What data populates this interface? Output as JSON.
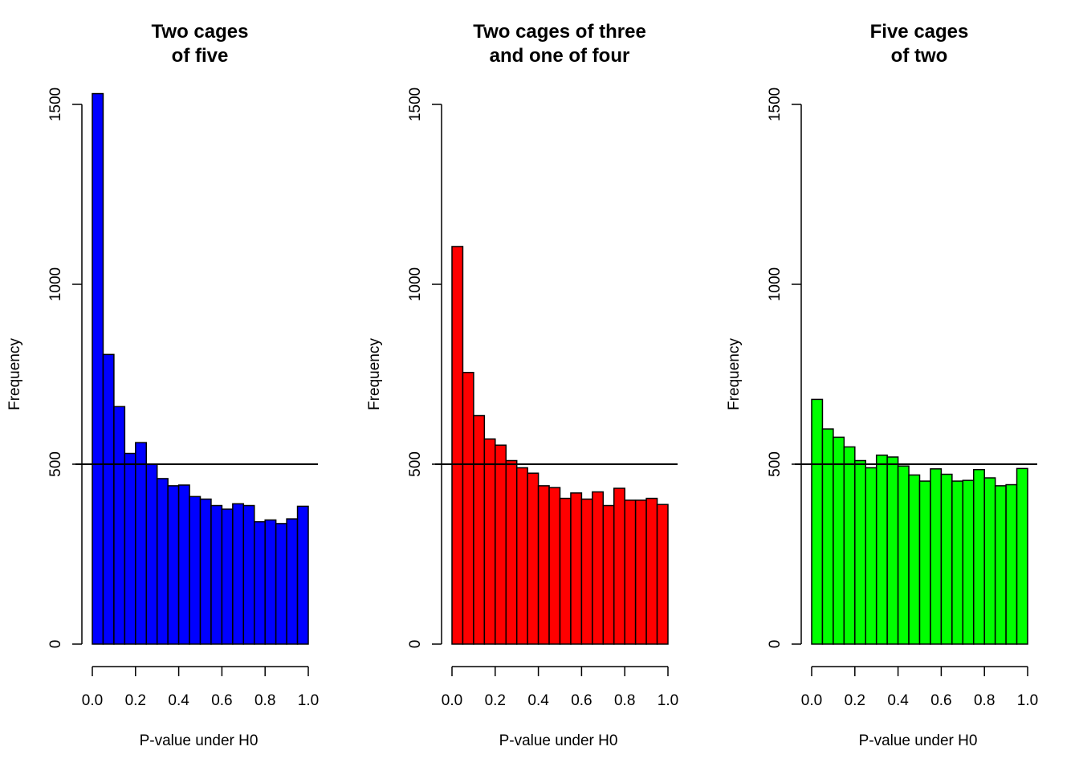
{
  "chart_data": [
    {
      "type": "bar",
      "title_lines": [
        "Two cages",
        "of five"
      ],
      "xlabel": "P-value under H0",
      "ylabel": "Frequency",
      "bin_edges": [
        0.0,
        0.05,
        0.1,
        0.15,
        0.2,
        0.25,
        0.3,
        0.35,
        0.4,
        0.45,
        0.5,
        0.55,
        0.6,
        0.65,
        0.7,
        0.75,
        0.8,
        0.85,
        0.9,
        0.95,
        1.0
      ],
      "values": [
        1530,
        805,
        660,
        530,
        560,
        500,
        460,
        440,
        442,
        410,
        403,
        385,
        375,
        390,
        385,
        340,
        345,
        335,
        348,
        383
      ],
      "xlim": [
        0,
        1
      ],
      "ylim": [
        0,
        1500
      ],
      "xticks": [
        "0.0",
        "0.2",
        "0.4",
        "0.6",
        "0.8",
        "1.0"
      ],
      "yticks": [
        "0",
        "500",
        "1000",
        "1500"
      ],
      "reference_line_y": 500,
      "bar_color": "#0000ff"
    },
    {
      "type": "bar",
      "title_lines": [
        "Two cages of three",
        "and one of four"
      ],
      "xlabel": "P-value under H0",
      "ylabel": "Frequency",
      "bin_edges": [
        0.0,
        0.05,
        0.1,
        0.15,
        0.2,
        0.25,
        0.3,
        0.35,
        0.4,
        0.45,
        0.5,
        0.55,
        0.6,
        0.65,
        0.7,
        0.75,
        0.8,
        0.85,
        0.9,
        0.95,
        1.0
      ],
      "values": [
        1105,
        755,
        635,
        570,
        553,
        510,
        490,
        475,
        440,
        435,
        405,
        420,
        403,
        423,
        385,
        433,
        400,
        400,
        405,
        388
      ],
      "xlim": [
        0,
        1
      ],
      "ylim": [
        0,
        1500
      ],
      "xticks": [
        "0.0",
        "0.2",
        "0.4",
        "0.6",
        "0.8",
        "1.0"
      ],
      "yticks": [
        "0",
        "500",
        "1000",
        "1500"
      ],
      "reference_line_y": 500,
      "bar_color": "#ff0000"
    },
    {
      "type": "bar",
      "title_lines": [
        "Five cages",
        "of two"
      ],
      "xlabel": "P-value under H0",
      "ylabel": "Frequency",
      "bin_edges": [
        0.0,
        0.05,
        0.1,
        0.15,
        0.2,
        0.25,
        0.3,
        0.35,
        0.4,
        0.45,
        0.5,
        0.55,
        0.6,
        0.65,
        0.7,
        0.75,
        0.8,
        0.85,
        0.9,
        0.95,
        1.0
      ],
      "values": [
        680,
        598,
        575,
        548,
        510,
        490,
        525,
        520,
        495,
        470,
        453,
        487,
        472,
        453,
        455,
        485,
        462,
        440,
        443,
        488
      ],
      "xlim": [
        0,
        1
      ],
      "ylim": [
        0,
        1500
      ],
      "xticks": [
        "0.0",
        "0.2",
        "0.4",
        "0.6",
        "0.8",
        "1.0"
      ],
      "yticks": [
        "0",
        "500",
        "1000",
        "1500"
      ],
      "reference_line_y": 500,
      "bar_color": "#00ff00"
    }
  ]
}
